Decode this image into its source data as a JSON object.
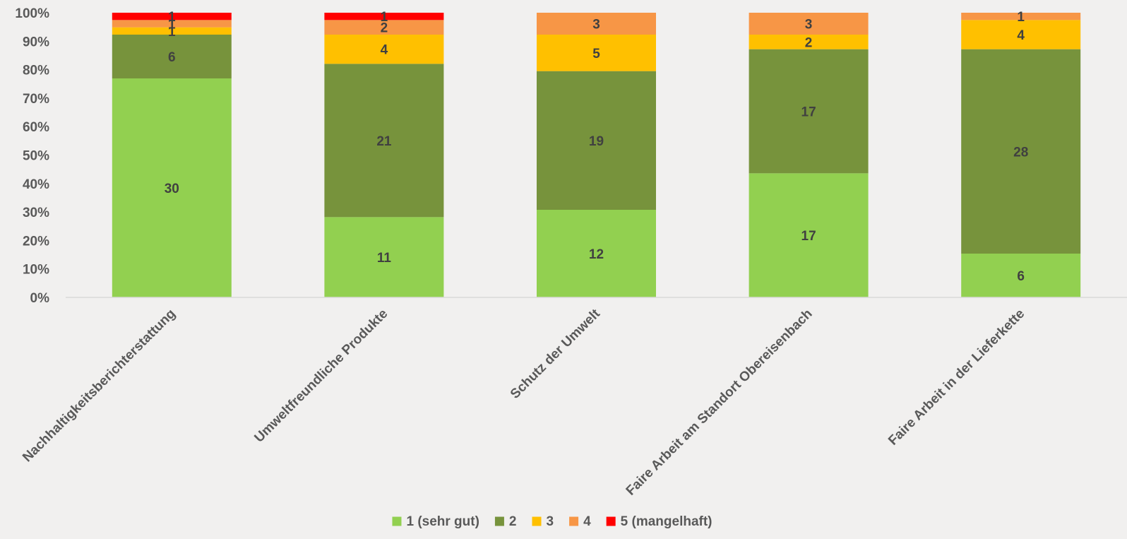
{
  "chart_data": {
    "type": "bar",
    "stacked": true,
    "normalized_percent": true,
    "categories": [
      "Nachhaltigkeitsberichterstattung",
      "Umweltfreundliche Produkte",
      "Schutz der Umwelt",
      "Faire Arbeit am Standort Obereisenbach",
      "Faire Arbeit in der Lieferkette"
    ],
    "series": [
      {
        "name": "1 (sehr gut)",
        "color": "#92d050",
        "values": [
          30,
          11,
          12,
          17,
          6
        ]
      },
      {
        "name": "2",
        "color": "#77933c",
        "values": [
          6,
          21,
          19,
          17,
          28
        ]
      },
      {
        "name": "3",
        "color": "#ffc000",
        "values": [
          1,
          4,
          5,
          2,
          4
        ]
      },
      {
        "name": "4",
        "color": "#f79646",
        "values": [
          1,
          2,
          3,
          3,
          1
        ]
      },
      {
        "name": "5 (mangelhaft)",
        "color": "#ff0000",
        "values": [
          1,
          1,
          0,
          0,
          0
        ]
      }
    ],
    "yticks": [
      "0%",
      "10%",
      "20%",
      "30%",
      "40%",
      "50%",
      "60%",
      "70%",
      "80%",
      "90%",
      "100%"
    ],
    "ylim": [
      0,
      100
    ],
    "grid": false,
    "legend_position": "bottom",
    "data_labels": true
  }
}
